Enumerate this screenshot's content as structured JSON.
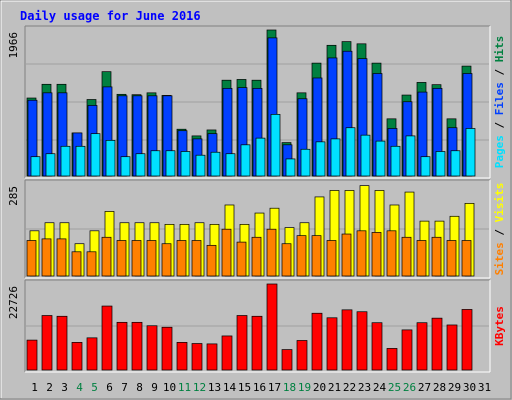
{
  "title": "Daily usage for June 2016",
  "colors": {
    "background": "#C0C0C0",
    "hits": "#008040",
    "files": "#0040FF",
    "pages": "#00E0FF",
    "visits": "#FFFF00",
    "sites": "#FF8000",
    "kbytes": "#FF0000",
    "weekend_label": "#008040",
    "weekday_label": "#000000",
    "title": "#0000FF"
  },
  "chart_data": [
    {
      "type": "bar",
      "categories": [
        "1",
        "2",
        "3",
        "4",
        "5",
        "6",
        "7",
        "8",
        "9",
        "10",
        "11",
        "12",
        "13",
        "14",
        "15",
        "16",
        "17",
        "18",
        "19",
        "20",
        "21",
        "22",
        "23",
        "24",
        "25",
        "26",
        "27",
        "28",
        "29",
        "30",
        "31"
      ],
      "weekend_days": [
        "4",
        "5",
        "11",
        "12",
        "18",
        "19",
        "25",
        "26"
      ],
      "ytick": "1966",
      "ylim": [
        0,
        1966
      ],
      "legend": [
        "Pages",
        "Files",
        "Hits"
      ],
      "series": [
        {
          "name": "Hits",
          "values": [
            1050,
            1235,
            1235,
            580,
            1030,
            1405,
            1100,
            1095,
            1120,
            1085,
            630,
            540,
            620,
            1290,
            1300,
            1290,
            1966,
            450,
            1120,
            1520,
            1760,
            1810,
            1780,
            1520,
            770,
            1090,
            1260,
            1230,
            770,
            1480,
            0
          ]
        },
        {
          "name": "Files",
          "values": [
            1020,
            1120,
            1120,
            580,
            950,
            1200,
            1080,
            1080,
            1080,
            1080,
            610,
            500,
            570,
            1180,
            1190,
            1180,
            1860,
            420,
            1040,
            1320,
            1590,
            1680,
            1580,
            1380,
            640,
            1000,
            1130,
            1180,
            650,
            1380,
            0
          ]
        },
        {
          "name": "Pages",
          "values": [
            260,
            300,
            400,
            400,
            570,
            480,
            260,
            300,
            340,
            340,
            330,
            280,
            320,
            300,
            420,
            510,
            830,
            230,
            360,
            460,
            500,
            650,
            550,
            470,
            400,
            540,
            260,
            330,
            340,
            640,
            0
          ]
        }
      ]
    },
    {
      "type": "bar",
      "categories": [
        "1",
        "2",
        "3",
        "4",
        "5",
        "6",
        "7",
        "8",
        "9",
        "10",
        "11",
        "12",
        "13",
        "14",
        "15",
        "16",
        "17",
        "18",
        "19",
        "20",
        "21",
        "22",
        "23",
        "24",
        "25",
        "26",
        "27",
        "28",
        "29",
        "30",
        "31"
      ],
      "ytick": "285",
      "ylim": [
        0,
        285
      ],
      "legend": [
        "Sites",
        "Visits"
      ],
      "series": [
        {
          "name": "Visits",
          "values": [
            140,
            165,
            165,
            100,
            140,
            200,
            165,
            165,
            165,
            160,
            160,
            165,
            160,
            220,
            160,
            195,
            210,
            150,
            165,
            245,
            265,
            265,
            280,
            265,
            220,
            260,
            170,
            170,
            185,
            225,
            0
          ]
        },
        {
          "name": "Sites",
          "values": [
            110,
            115,
            115,
            75,
            75,
            120,
            110,
            110,
            110,
            100,
            110,
            110,
            95,
            145,
            105,
            120,
            145,
            100,
            125,
            125,
            110,
            130,
            140,
            135,
            140,
            120,
            110,
            120,
            110,
            110,
            0
          ]
        }
      ]
    },
    {
      "type": "bar",
      "categories": [
        "1",
        "2",
        "3",
        "4",
        "5",
        "6",
        "7",
        "8",
        "9",
        "10",
        "11",
        "12",
        "13",
        "14",
        "15",
        "16",
        "17",
        "18",
        "19",
        "20",
        "21",
        "22",
        "23",
        "24",
        "25",
        "26",
        "27",
        "28",
        "29",
        "30",
        "31"
      ],
      "ytick": "22726",
      "ylim": [
        0,
        22726
      ],
      "legend": [
        "KBytes"
      ],
      "series": [
        {
          "name": "KBytes",
          "values": [
            7900,
            14400,
            14200,
            7300,
            8500,
            16900,
            12600,
            12600,
            11700,
            11300,
            7300,
            7000,
            6900,
            9000,
            14400,
            14200,
            22726,
            5400,
            7800,
            15000,
            13800,
            15900,
            15400,
            12500,
            5700,
            10600,
            12500,
            13700,
            11900,
            16000,
            0
          ]
        }
      ]
    }
  ]
}
